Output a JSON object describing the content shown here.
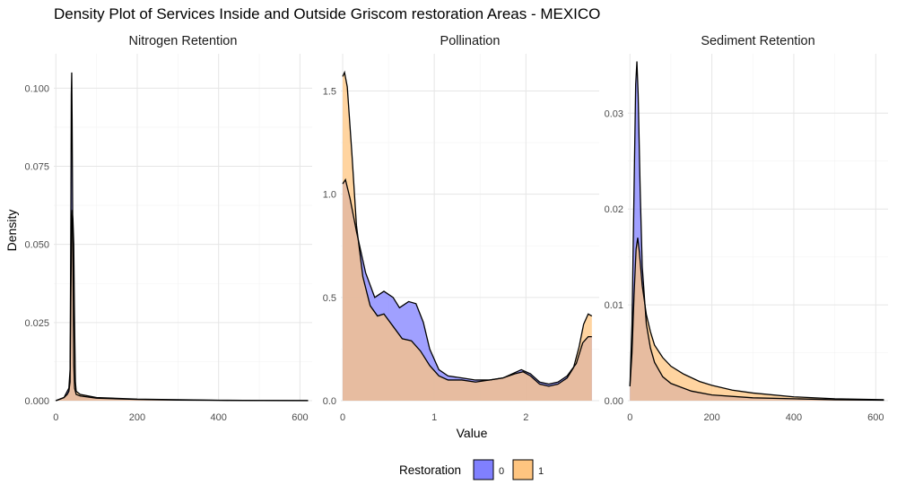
{
  "chart_data": {
    "type": "area",
    "title": "Density Plot of Services Inside and Outside Griscom restoration Areas - MEXICO",
    "xlabel": "Value",
    "ylabel": "Density",
    "grid": true,
    "legend": {
      "title": "Restoration",
      "position": "bottom",
      "entries": [
        {
          "label": "0",
          "color": "#8080ff"
        },
        {
          "label": "1",
          "color": "#ffc580"
        }
      ]
    },
    "panels": [
      {
        "name": "Nitrogen Retention",
        "xlim": [
          -5,
          630
        ],
        "ylim": [
          0,
          0.111
        ],
        "xticks": [
          {
            "v": 0,
            "label": "0"
          },
          {
            "v": 200,
            "label": "200"
          },
          {
            "v": 400,
            "label": "400"
          },
          {
            "v": 600,
            "label": "600"
          }
        ],
        "yticks": [
          {
            "v": 0,
            "label": "0.000"
          },
          {
            "v": 0.025,
            "label": "0.025"
          },
          {
            "v": 0.05,
            "label": "0.050"
          },
          {
            "v": 0.075,
            "label": "0.075"
          },
          {
            "v": 0.1,
            "label": "0.100"
          }
        ],
        "series": [
          {
            "name": "0",
            "color": "#8080ff",
            "points": [
              [
                0,
                0
              ],
              [
                10,
                0.0005
              ],
              [
                20,
                0.001
              ],
              [
                28,
                0.003
              ],
              [
                32,
                0.004
              ],
              [
                35,
                0.01
              ],
              [
                37,
                0.06
              ],
              [
                38,
                0.098
              ],
              [
                39,
                0.105
              ],
              [
                40,
                0.09
              ],
              [
                42,
                0.045
              ],
              [
                44,
                0.012
              ],
              [
                46,
                0.004
              ],
              [
                50,
                0.002
              ],
              [
                60,
                0.0015
              ],
              [
                100,
                0.0008
              ],
              [
                200,
                0.0004
              ],
              [
                300,
                0.0002
              ],
              [
                400,
                0.0001
              ],
              [
                500,
                5e-05
              ],
              [
                620,
                2e-05
              ]
            ]
          },
          {
            "name": "1",
            "color": "#ffc580",
            "points": [
              [
                0,
                0
              ],
              [
                10,
                0.0005
              ],
              [
                20,
                0.001
              ],
              [
                28,
                0.002
              ],
              [
                32,
                0.003
              ],
              [
                35,
                0.006
              ],
              [
                37,
                0.035
              ],
              [
                39,
                0.058
              ],
              [
                40,
                0.061
              ],
              [
                42,
                0.058
              ],
              [
                44,
                0.05
              ],
              [
                46,
                0.025
              ],
              [
                48,
                0.006
              ],
              [
                50,
                0.003
              ],
              [
                60,
                0.002
              ],
              [
                100,
                0.001
              ],
              [
                200,
                0.0005
              ],
              [
                300,
                0.0003
              ],
              [
                400,
                0.00015
              ],
              [
                500,
                8e-05
              ],
              [
                620,
                3e-05
              ]
            ]
          }
        ]
      },
      {
        "name": "Pollination",
        "xlim": [
          -0.02,
          2.8
        ],
        "ylim": [
          0,
          1.68
        ],
        "xticks": [
          {
            "v": 0,
            "label": "0"
          },
          {
            "v": 1,
            "label": "1"
          },
          {
            "v": 2,
            "label": "2"
          }
        ],
        "yticks": [
          {
            "v": 0,
            "label": "0.0"
          },
          {
            "v": 0.5,
            "label": "0.5"
          },
          {
            "v": 1,
            "label": "1.0"
          },
          {
            "v": 1.5,
            "label": "1.5"
          }
        ],
        "series": [
          {
            "name": "0",
            "color": "#8080ff",
            "points": [
              [
                0,
                1.05
              ],
              [
                0.03,
                1.07
              ],
              [
                0.08,
                0.98
              ],
              [
                0.15,
                0.82
              ],
              [
                0.25,
                0.62
              ],
              [
                0.35,
                0.5
              ],
              [
                0.45,
                0.53
              ],
              [
                0.55,
                0.5
              ],
              [
                0.62,
                0.45
              ],
              [
                0.72,
                0.48
              ],
              [
                0.8,
                0.47
              ],
              [
                0.88,
                0.38
              ],
              [
                0.95,
                0.25
              ],
              [
                1.05,
                0.15
              ],
              [
                1.15,
                0.12
              ],
              [
                1.3,
                0.11
              ],
              [
                1.45,
                0.1
              ],
              [
                1.6,
                0.1
              ],
              [
                1.75,
                0.11
              ],
              [
                1.85,
                0.13
              ],
              [
                1.95,
                0.15
              ],
              [
                2.05,
                0.13
              ],
              [
                2.15,
                0.09
              ],
              [
                2.25,
                0.08
              ],
              [
                2.35,
                0.09
              ],
              [
                2.45,
                0.12
              ],
              [
                2.55,
                0.18
              ],
              [
                2.62,
                0.28
              ],
              [
                2.68,
                0.31
              ],
              [
                2.72,
                0.31
              ]
            ]
          },
          {
            "name": "1",
            "color": "#ffc580",
            "points": [
              [
                0,
                1.57
              ],
              [
                0.02,
                1.59
              ],
              [
                0.05,
                1.52
              ],
              [
                0.1,
                1.2
              ],
              [
                0.15,
                0.85
              ],
              [
                0.22,
                0.6
              ],
              [
                0.3,
                0.46
              ],
              [
                0.38,
                0.41
              ],
              [
                0.45,
                0.42
              ],
              [
                0.55,
                0.36
              ],
              [
                0.65,
                0.3
              ],
              [
                0.75,
                0.29
              ],
              [
                0.85,
                0.24
              ],
              [
                0.95,
                0.17
              ],
              [
                1.05,
                0.12
              ],
              [
                1.15,
                0.1
              ],
              [
                1.3,
                0.1
              ],
              [
                1.45,
                0.09
              ],
              [
                1.6,
                0.1
              ],
              [
                1.75,
                0.11
              ],
              [
                1.88,
                0.13
              ],
              [
                1.97,
                0.14
              ],
              [
                2.05,
                0.12
              ],
              [
                2.15,
                0.08
              ],
              [
                2.25,
                0.07
              ],
              [
                2.35,
                0.08
              ],
              [
                2.45,
                0.11
              ],
              [
                2.52,
                0.16
              ],
              [
                2.58,
                0.26
              ],
              [
                2.63,
                0.37
              ],
              [
                2.68,
                0.42
              ],
              [
                2.72,
                0.41
              ]
            ]
          }
        ]
      },
      {
        "name": "Sediment Retention",
        "xlim": [
          -5,
          630
        ],
        "ylim": [
          0,
          0.0362
        ],
        "xticks": [
          {
            "v": 0,
            "label": "0"
          },
          {
            "v": 200,
            "label": "200"
          },
          {
            "v": 400,
            "label": "400"
          },
          {
            "v": 600,
            "label": "600"
          }
        ],
        "yticks": [
          {
            "v": 0,
            "label": "0.00"
          },
          {
            "v": 0.01,
            "label": "0.01"
          },
          {
            "v": 0.02,
            "label": "0.02"
          },
          {
            "v": 0.03,
            "label": "0.03"
          }
        ],
        "series": [
          {
            "name": "0",
            "color": "#8080ff",
            "points": [
              [
                0,
                0.0015
              ],
              [
                5,
                0.008
              ],
              [
                10,
                0.022
              ],
              [
                14,
                0.033
              ],
              [
                17,
                0.0354
              ],
              [
                20,
                0.032
              ],
              [
                25,
                0.022
              ],
              [
                30,
                0.014
              ],
              [
                40,
                0.008
              ],
              [
                50,
                0.0055
              ],
              [
                60,
                0.004
              ],
              [
                80,
                0.0025
              ],
              [
                100,
                0.0018
              ],
              [
                150,
                0.001
              ],
              [
                200,
                0.0006
              ],
              [
                300,
                0.0003
              ],
              [
                400,
                0.0002
              ],
              [
                500,
                0.0001
              ],
              [
                620,
                5e-05
              ]
            ]
          },
          {
            "name": "1",
            "color": "#ffc580",
            "points": [
              [
                0,
                0.0015
              ],
              [
                5,
                0.005
              ],
              [
                10,
                0.011
              ],
              [
                15,
                0.0158
              ],
              [
                19,
                0.017
              ],
              [
                23,
                0.0155
              ],
              [
                30,
                0.012
              ],
              [
                40,
                0.009
              ],
              [
                50,
                0.0072
              ],
              [
                60,
                0.0058
              ],
              [
                80,
                0.0045
              ],
              [
                100,
                0.0036
              ],
              [
                130,
                0.0028
              ],
              [
                170,
                0.002
              ],
              [
                200,
                0.0016
              ],
              [
                250,
                0.0011
              ],
              [
                300,
                0.0008
              ],
              [
                400,
                0.0004
              ],
              [
                500,
                0.0002
              ],
              [
                620,
                0.0001
              ]
            ]
          }
        ]
      }
    ]
  }
}
